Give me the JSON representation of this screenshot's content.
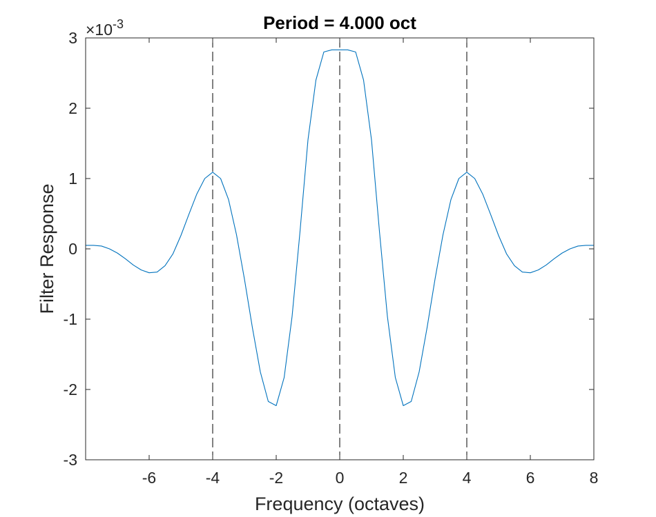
{
  "chart_data": {
    "type": "line",
    "title": "Period = 4.000 oct",
    "xlabel": "Frequency (octaves)",
    "ylabel": "Filter Response",
    "y_exponent_label": {
      "base": "×10",
      "power": "-3"
    },
    "xlim": [
      -8,
      8
    ],
    "ylim": [
      -0.003,
      0.003
    ],
    "xticks": [
      -6,
      -4,
      -2,
      0,
      2,
      4,
      6,
      8
    ],
    "xtick_labels": [
      "-6",
      "-4",
      "-2",
      "0",
      "2",
      "4",
      "6",
      "8"
    ],
    "yticks": [
      -0.003,
      -0.002,
      -0.001,
      0,
      0.001,
      0.002,
      0.003
    ],
    "ytick_labels": [
      "-3",
      "-2",
      "-1",
      "0",
      "1",
      "2",
      "3"
    ],
    "vertical_lines": [
      -4,
      0,
      4
    ],
    "series": [
      {
        "color": "#0072BD",
        "x": [
          -8,
          -7.75,
          -7.5,
          -7.25,
          -7,
          -6.75,
          -6.5,
          -6.25,
          -6,
          -5.75,
          -5.5,
          -5.25,
          -5,
          -4.75,
          -4.5,
          -4.25,
          -4,
          -3.75,
          -3.5,
          -3.25,
          -3,
          -2.75,
          -2.5,
          -2.25,
          -2,
          -1.75,
          -1.5,
          -1.25,
          -1,
          -0.75,
          -0.5,
          -0.25,
          0,
          0.25,
          0.5,
          0.75,
          1,
          1.25,
          1.5,
          1.75,
          2,
          2.25,
          2.5,
          2.75,
          3,
          3.25,
          3.5,
          3.75,
          4,
          4.25,
          4.5,
          4.75,
          5,
          5.25,
          5.5,
          5.75,
          6,
          6.25,
          6.5,
          6.75,
          7,
          7.25,
          7.5,
          7.75,
          8
        ],
        "y": [
          5e-05,
          5e-05,
          4e-05,
          0.0,
          -6e-05,
          -0.00014,
          -0.00023,
          -0.0003,
          -0.00034,
          -0.00033,
          -0.00024,
          -7e-05,
          0.00019,
          0.00049,
          0.00078,
          0.001,
          0.00109,
          0.001,
          0.0007,
          0.0002,
          -0.00043,
          -0.00112,
          -0.00175,
          -0.00217,
          -0.00223,
          -0.00183,
          -0.00096,
          0.00025,
          0.00155,
          0.0024,
          0.0028,
          0.00283,
          0.00283,
          0.00283,
          0.0028,
          0.0024,
          0.00155,
          0.00025,
          -0.00096,
          -0.00183,
          -0.00223,
          -0.00217,
          -0.00175,
          -0.00112,
          -0.00043,
          0.0002,
          0.0007,
          0.001,
          0.00109,
          0.001,
          0.00078,
          0.00049,
          0.00019,
          -7e-05,
          -0.00024,
          -0.00033,
          -0.00034,
          -0.0003,
          -0.00023,
          -0.00014,
          -6e-05,
          0.0,
          4e-05,
          5e-05,
          5e-05
        ]
      }
    ],
    "grid": false,
    "box": true
  }
}
